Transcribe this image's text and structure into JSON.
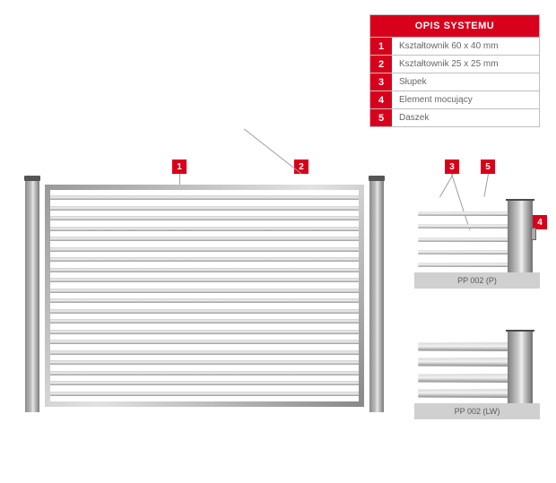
{
  "legend": {
    "title": "OPIS SYSTEMU",
    "items": [
      {
        "n": "1",
        "label": "Kształtownik 60 x 40 mm"
      },
      {
        "n": "2",
        "label": "Kształtownik 25 x 25 mm"
      },
      {
        "n": "3",
        "label": "Słupek"
      },
      {
        "n": "4",
        "label": "Element mocujący"
      },
      {
        "n": "5",
        "label": "Daszek"
      }
    ]
  },
  "markers": {
    "m1": "1",
    "m2": "2",
    "m3": "3",
    "m4": "4",
    "m5": "5"
  },
  "details": {
    "top_label": "PP 002 (P)",
    "bot_label": "PP 002 (LW)"
  },
  "style": {
    "red": "#d9001b",
    "main_slat_count": 20,
    "detail_top_bars": 5,
    "detail_bot_bars": 4
  }
}
